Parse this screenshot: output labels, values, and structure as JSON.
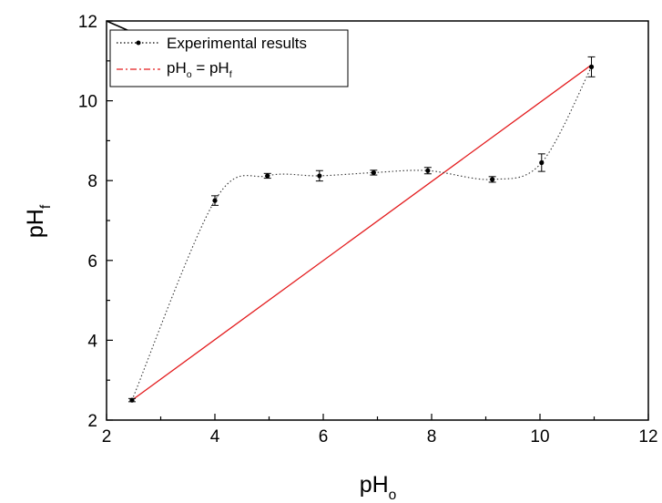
{
  "chart_data": {
    "type": "scatter",
    "title": "",
    "xlabel": "pH",
    "xlabel_sub": "o",
    "ylabel": "pH",
    "ylabel_sub": "f",
    "xlim": [
      2,
      12
    ],
    "ylim": [
      2,
      12
    ],
    "xticks": [
      "2",
      "4",
      "6",
      "8",
      "10",
      "12"
    ],
    "yticks": [
      "2",
      "4",
      "6",
      "8",
      "10",
      "12"
    ],
    "grid": false,
    "legend_position": "top-left",
    "series": [
      {
        "name": "Experimental results",
        "style": "dotted-smooth-with-markers",
        "color": "#000000",
        "x": [
          2.47,
          4.0,
          4.97,
          5.93,
          6.93,
          7.93,
          9.12,
          10.03,
          10.95
        ],
        "y": [
          2.5,
          7.5,
          8.12,
          8.12,
          8.2,
          8.25,
          8.03,
          8.45,
          10.85
        ],
        "error": [
          0.04,
          0.12,
          0.06,
          0.13,
          0.06,
          0.08,
          0.07,
          0.22,
          0.25
        ]
      },
      {
        "name": "pHo = pHf",
        "name_parts": {
          "base1": "pH",
          "sub1": "o",
          "eq": " = pH",
          "sub2": "f"
        },
        "style": "line",
        "color": "#e31a1c",
        "x": [
          2.47,
          10.95
        ],
        "y": [
          2.5,
          10.9
        ]
      }
    ]
  }
}
